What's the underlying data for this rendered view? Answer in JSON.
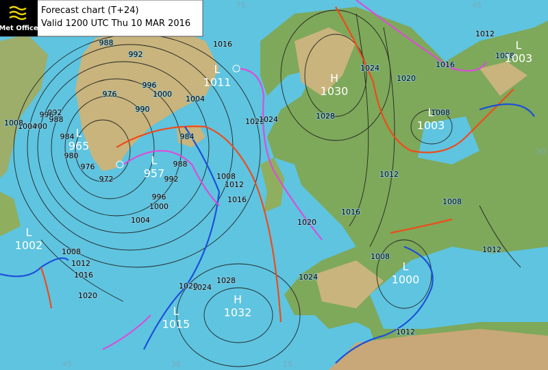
{
  "header": {
    "logo": "Met Office",
    "title": "Forecast chart (T+24)",
    "subtitle": "Valid 1200 UTC Thu 10 MAR 2016"
  },
  "pressure_centers": [
    {
      "type": "L",
      "value": "1011"
    },
    {
      "type": "H",
      "value": "1030"
    },
    {
      "type": "L",
      "value": "1003"
    },
    {
      "type": "L",
      "value": "1003"
    },
    {
      "type": "L",
      "value": "965"
    },
    {
      "type": "L",
      "value": "957"
    },
    {
      "type": "L",
      "value": "1002"
    },
    {
      "type": "L",
      "value": "1000"
    },
    {
      "type": "L",
      "value": "1015"
    },
    {
      "type": "H",
      "value": "1032"
    }
  ],
  "isobar_labels": [
    "988",
    "992",
    "996",
    "1000",
    "976",
    "990",
    "1004",
    "1016",
    "1020",
    "1024",
    "1028",
    "1024",
    "1020",
    "1016",
    "1012",
    "1008",
    "1008",
    "984",
    "988",
    "992",
    "996",
    "1000",
    "1004",
    "1008",
    "1012",
    "1016",
    "1012",
    "1016",
    "1020",
    "1024",
    "1028",
    "1024",
    "1020",
    "1008",
    "1012",
    "1016",
    "1020",
    "1008",
    "1008",
    "1012",
    "1012",
    "972",
    "976",
    "980",
    "984",
    "988",
    "992",
    "996",
    "1000",
    "1004",
    "1008"
  ],
  "grid_labels": [
    "75",
    "45",
    "30",
    "15",
    "30",
    "45"
  ]
}
